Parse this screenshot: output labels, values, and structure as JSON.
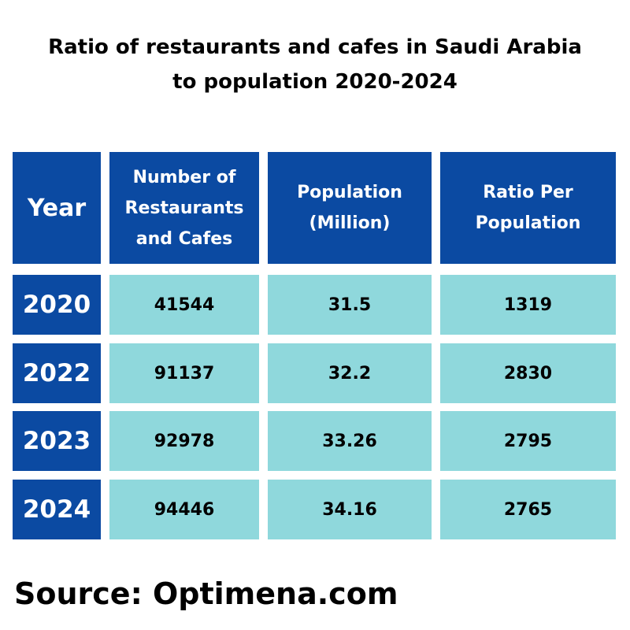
{
  "title": {
    "line1": "Ratio of restaurants and cafes in Saudi Arabia",
    "line2": "to population 2020-2024"
  },
  "colors": {
    "header_bg": "#0b4aa2",
    "header_text": "#ffffff",
    "cell_bg": "#8fd8dc",
    "cell_text": "#000000"
  },
  "chart_data": {
    "type": "table",
    "title": "Ratio of restaurants and cafes in Saudi Arabia to population 2020-2024",
    "columns": [
      "Year",
      "Number of Restaurants and Cafes",
      "Population (Million)",
      "Ratio Per Population"
    ],
    "rows": [
      [
        "2020",
        "41544",
        "31.5",
        "1319"
      ],
      [
        "2022",
        "91137",
        "32.2",
        "2830"
      ],
      [
        "2023",
        "92978",
        "33.26",
        "2795"
      ],
      [
        "2024",
        "94446",
        "34.16",
        "2765"
      ]
    ]
  },
  "source": "Source: Optimena.com"
}
